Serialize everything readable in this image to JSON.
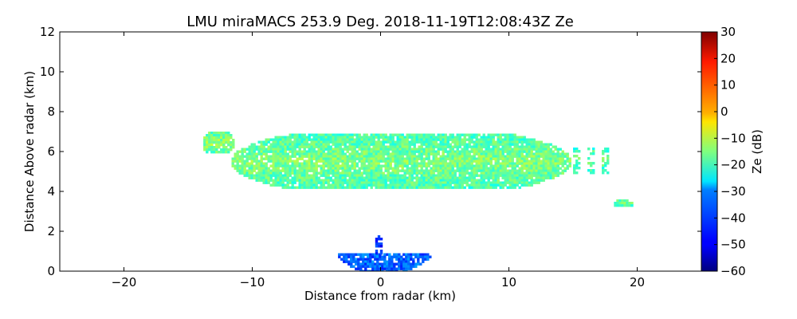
{
  "chart_data": {
    "type": "heatmap",
    "title": "LMU miraMACS 253.9 Deg. 2018-11-19T12:08:43Z  Ze",
    "xlabel": "Distance from radar (km)",
    "ylabel": "Distance Above radar  (km)",
    "xlim": [
      -25,
      25
    ],
    "ylim": [
      0,
      12
    ],
    "xticks": [
      -20,
      -10,
      0,
      10,
      20
    ],
    "yticks": [
      0,
      2,
      4,
      6,
      8,
      10,
      12
    ],
    "grid": false,
    "colorbar": {
      "label": "Ze (dB)",
      "range": [
        -60,
        30
      ],
      "ticks": [
        -60,
        -50,
        -40,
        -30,
        -20,
        -10,
        0,
        10,
        20,
        30
      ],
      "colormap": "jet"
    },
    "echo_regions": [
      {
        "name": "main-cloud-layer",
        "x_range": [
          -11.8,
          14.8
        ],
        "y_range": [
          4.2,
          6.9
        ],
        "ze_approx": -20
      },
      {
        "name": "upper-left-cloud-fragment",
        "x_range": [
          -14.0,
          -11.5
        ],
        "y_range": [
          6.0,
          7.0
        ],
        "ze_approx": -18
      },
      {
        "name": "right-streaks",
        "x_range": [
          15.0,
          18.0
        ],
        "y_range": [
          5.0,
          6.2
        ],
        "ze_approx": -22
      },
      {
        "name": "far-right-patch",
        "x_range": [
          18.0,
          19.6
        ],
        "y_range": [
          3.3,
          3.6
        ],
        "ze_approx": -20
      },
      {
        "name": "near-ground-clutter",
        "x_range": [
          -3.5,
          3.8
        ],
        "y_range": [
          0.0,
          0.9
        ],
        "ze_approx": -40
      },
      {
        "name": "central-spike",
        "x_range": [
          -0.6,
          0.3
        ],
        "y_range": [
          0.9,
          1.8
        ],
        "ze_approx": -45
      }
    ]
  }
}
